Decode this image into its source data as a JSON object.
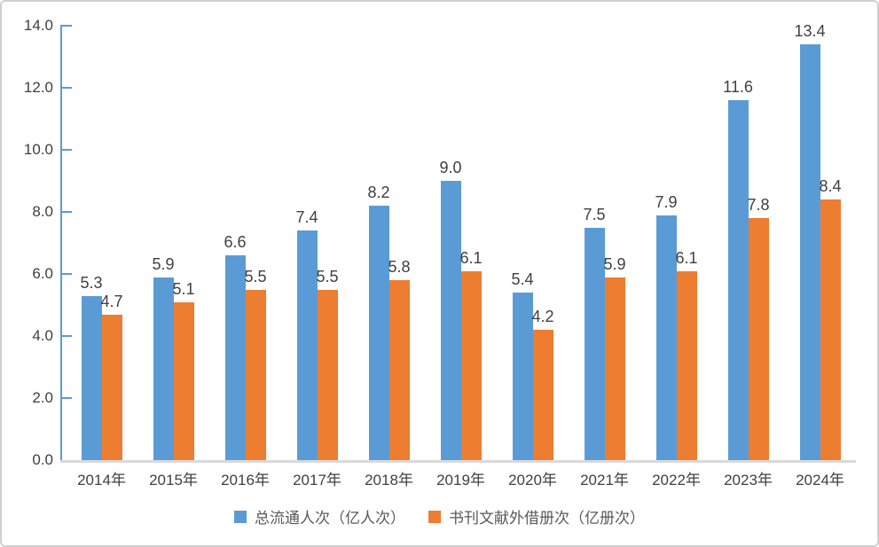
{
  "chart_data": {
    "type": "bar",
    "categories": [
      "2014年",
      "2015年",
      "2016年",
      "2017年",
      "2018年",
      "2019年",
      "2020年",
      "2021年",
      "2022年",
      "2023年",
      "2024年"
    ],
    "series": [
      {
        "name": "总流通人次（亿人次）",
        "color": "#5B9BD5",
        "values": [
          5.3,
          5.9,
          6.6,
          7.4,
          8.2,
          9.0,
          5.4,
          7.5,
          7.9,
          11.6,
          13.4
        ]
      },
      {
        "name": "书刊文献外借册次（亿册次）",
        "color": "#ED7D31",
        "values": [
          4.7,
          5.1,
          5.5,
          5.5,
          5.8,
          6.1,
          4.2,
          5.9,
          6.1,
          7.8,
          8.4
        ]
      }
    ],
    "title": "",
    "xlabel": "",
    "ylabel": "",
    "ylim": [
      0,
      14
    ],
    "ytick_step": 2,
    "ytick_labels": [
      "0.0",
      "2.0",
      "4.0",
      "6.0",
      "8.0",
      "10.0",
      "12.0",
      "14.0"
    ],
    "value_label_decimals": 1,
    "grid": false,
    "legend_position": "bottom"
  },
  "colors": {
    "background": "#FFFFFF",
    "border": "#CFCFCF",
    "axis_line": "#5B9BD5",
    "baseline": "#D9D9D9",
    "tick_text": "#404040",
    "value_text": "#404040",
    "legend_text": "#595959"
  }
}
